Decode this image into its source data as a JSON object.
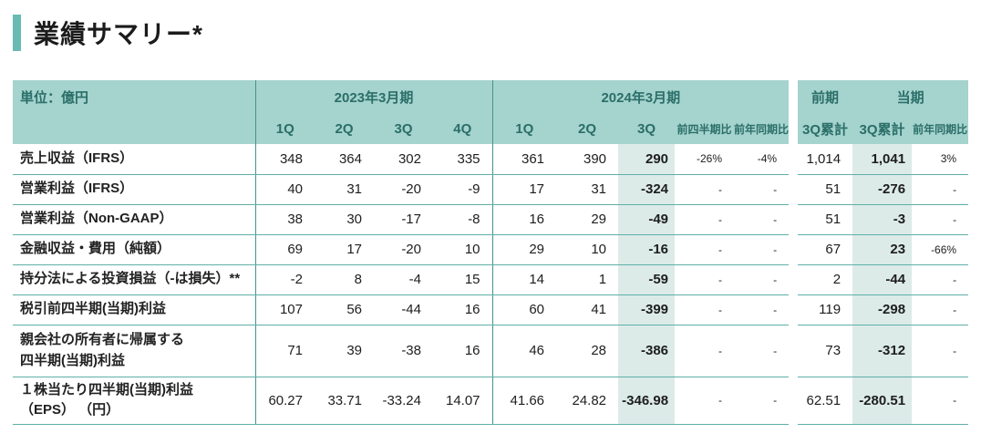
{
  "title": "業績サマリー*",
  "colors": {
    "accent_bar": "#68bab3",
    "header_bg": "#a5d3cd",
    "header_text": "#2b6e69",
    "highlight_bg": "#dcebe8",
    "row_border": "#5fafa8",
    "divider": "#44948d"
  },
  "table": {
    "unit_label": "単位：億円",
    "group_2023": {
      "label": "2023年3月期",
      "subcols": [
        "1Q",
        "2Q",
        "3Q",
        "4Q"
      ]
    },
    "group_2024": {
      "label": "2024年3月期",
      "subcols": [
        "1Q",
        "2Q",
        "3Q",
        "前四半期比",
        "前年同期比"
      ]
    },
    "group_totals": {
      "prev_label": "前期",
      "cur_label": "当期",
      "subcols": [
        "3Q累計",
        "3Q累計",
        "前年同期比"
      ]
    },
    "rows": [
      {
        "label": "売上収益（IFRS）",
        "values": [
          "348",
          "364",
          "302",
          "335",
          "361",
          "390",
          "290",
          "-26%",
          "-4%",
          "1,014",
          "1,041",
          "3%"
        ]
      },
      {
        "label": "営業利益（IFRS）",
        "values": [
          "40",
          "31",
          "-20",
          "-9",
          "17",
          "31",
          "-324",
          "-",
          "-",
          "51",
          "-276",
          "-"
        ]
      },
      {
        "label": "営業利益（Non-GAAP）",
        "values": [
          "38",
          "30",
          "-17",
          "-8",
          "16",
          "29",
          "-49",
          "-",
          "-",
          "51",
          "-3",
          "-"
        ]
      },
      {
        "label": "金融収益・費用（純額）",
        "values": [
          "69",
          "17",
          "-20",
          "10",
          "29",
          "10",
          "-16",
          "-",
          "-",
          "67",
          "23",
          "-66%"
        ]
      },
      {
        "label": "持分法による投資損益（-は損失）**",
        "values": [
          "-2",
          "8",
          "-4",
          "15",
          "14",
          "1",
          "-59",
          "-",
          "-",
          "2",
          "-44",
          "-"
        ]
      },
      {
        "label": "税引前四半期(当期)利益",
        "values": [
          "107",
          "56",
          "-44",
          "16",
          "60",
          "41",
          "-399",
          "-",
          "-",
          "119",
          "-298",
          "-"
        ]
      },
      {
        "label": "親会社の所有者に帰属する",
        "label2": "四半期(当期)利益",
        "values": [
          "71",
          "39",
          "-38",
          "16",
          "46",
          "28",
          "-386",
          "-",
          "-",
          "73",
          "-312",
          "-"
        ]
      },
      {
        "label": "１株当たり四半期(当期)利益",
        "label2": "（EPS） （円）",
        "values": [
          "60.27",
          "33.71",
          "-33.24",
          "14.07",
          "41.66",
          "24.82",
          "-346.98",
          "-",
          "-",
          "62.51",
          "-280.51",
          "-"
        ]
      }
    ]
  }
}
